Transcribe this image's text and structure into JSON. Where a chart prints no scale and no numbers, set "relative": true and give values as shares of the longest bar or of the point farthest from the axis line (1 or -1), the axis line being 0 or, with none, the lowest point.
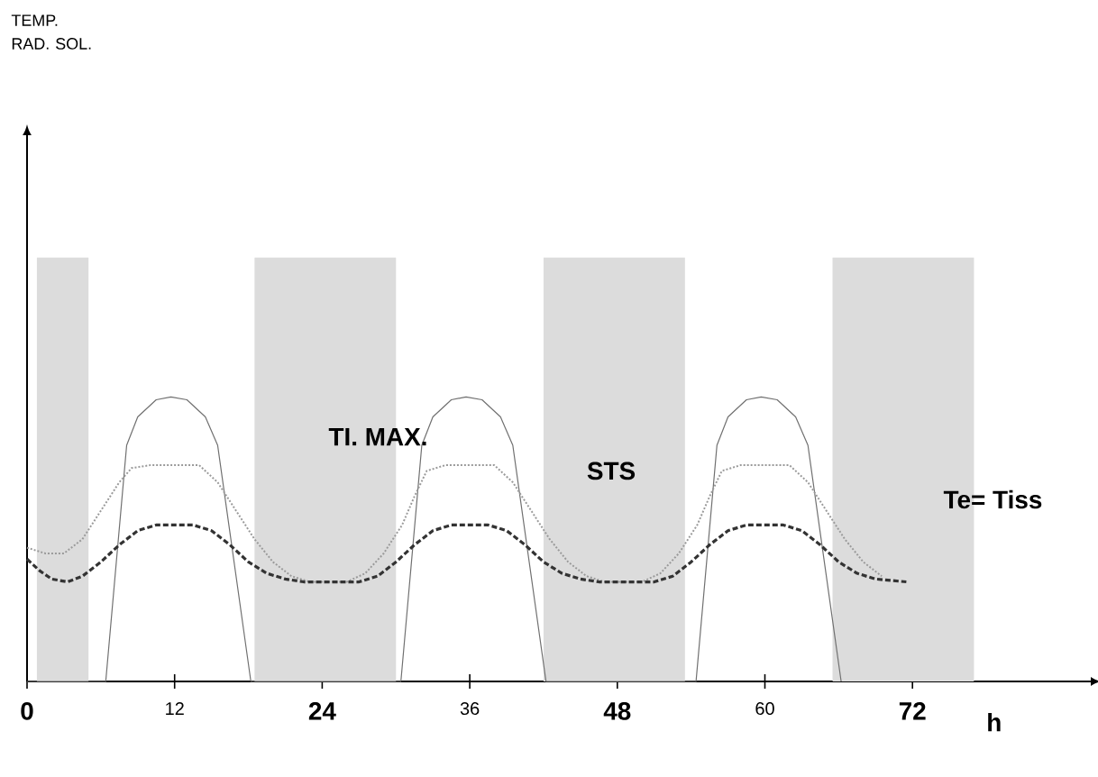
{
  "chart_data": {
    "type": "line",
    "relative": true,
    "xlabel": "h",
    "xlim": [
      0,
      86.5
    ],
    "xticks": [
      0,
      12,
      24,
      36,
      48,
      60,
      72
    ],
    "series": [
      {
        "color": "#707070",
        "line_style": "solid",
        "x": [
          0,
          6.4,
          8.1,
          9,
          10.5,
          11.7,
          13,
          14.5,
          15.5,
          18.2,
          30.4,
          32.1,
          33,
          34.5,
          35.7,
          37,
          38.5,
          39.5,
          42.2,
          54.4,
          56.1,
          57,
          58.5,
          59.7,
          61,
          62.5,
          63.5,
          66.2
        ],
        "values": [
          0,
          0,
          0.83,
          0.93,
          0.99,
          1,
          0.99,
          0.93,
          0.83,
          0,
          0,
          0.83,
          0.93,
          0.99,
          1,
          0.99,
          0.93,
          0.83,
          0,
          0,
          0.83,
          0.93,
          0.99,
          1,
          0.99,
          0.93,
          0.83,
          0
        ]
      },
      {
        "color": "#9a9a9a",
        "line_style": "dotted",
        "x": [
          0,
          1.5,
          3,
          4.5,
          6,
          7.5,
          8.5,
          10,
          14,
          15.5,
          17,
          18.5,
          20,
          21.5,
          23,
          26,
          27.5,
          29,
          30.5,
          31.5,
          32.5,
          34,
          38,
          39.5,
          41,
          42.5,
          44,
          45.5,
          47,
          50,
          51.5,
          53,
          54.5,
          55.5,
          56.5,
          58,
          62,
          63.5,
          65,
          66.5,
          68,
          69.5
        ],
        "values": [
          0.47,
          0.45,
          0.45,
          0.5,
          0.6,
          0.7,
          0.75,
          0.76,
          0.76,
          0.7,
          0.6,
          0.5,
          0.42,
          0.37,
          0.35,
          0.35,
          0.38,
          0.45,
          0.55,
          0.65,
          0.74,
          0.76,
          0.76,
          0.7,
          0.6,
          0.5,
          0.42,
          0.37,
          0.35,
          0.35,
          0.38,
          0.45,
          0.55,
          0.65,
          0.74,
          0.76,
          0.76,
          0.7,
          0.6,
          0.5,
          0.42,
          0.37
        ]
      },
      {
        "color": "#333333",
        "line_style": "dashed",
        "x": [
          0,
          1,
          2,
          3.3,
          4.5,
          6,
          7.5,
          9,
          10.5,
          13.5,
          15,
          16.5,
          18,
          19.5,
          21,
          22.5,
          27,
          28.5,
          30,
          31.5,
          33,
          34.5,
          37.5,
          39,
          40.5,
          42,
          43.5,
          45,
          46.5,
          51,
          52.5,
          54,
          55.5,
          57,
          58.5,
          61.5,
          63,
          64.5,
          66,
          67.5,
          69,
          71.5
        ],
        "values": [
          0.43,
          0.39,
          0.36,
          0.35,
          0.37,
          0.42,
          0.48,
          0.53,
          0.55,
          0.55,
          0.53,
          0.48,
          0.42,
          0.38,
          0.36,
          0.35,
          0.35,
          0.37,
          0.42,
          0.48,
          0.53,
          0.55,
          0.55,
          0.53,
          0.48,
          0.42,
          0.38,
          0.36,
          0.35,
          0.35,
          0.37,
          0.42,
          0.48,
          0.53,
          0.55,
          0.55,
          0.53,
          0.48,
          0.42,
          0.38,
          0.36,
          0.35
        ]
      }
    ],
    "bands": [
      {
        "axis": "x",
        "from": 0.8,
        "to": 5,
        "color": "#dcdcdc"
      },
      {
        "axis": "x",
        "from": 18.5,
        "to": 30,
        "color": "#dcdcdc"
      },
      {
        "axis": "x",
        "from": 42,
        "to": 53.5,
        "color": "#dcdcdc"
      },
      {
        "axis": "x",
        "from": 65.5,
        "to": 77,
        "color": "#dcdcdc"
      }
    ],
    "annotations": [
      "TEMP. RAD. SOL.",
      "TI. MAX.",
      "STS",
      "Te= Tiss"
    ],
    "grid": false,
    "marker": "none"
  }
}
